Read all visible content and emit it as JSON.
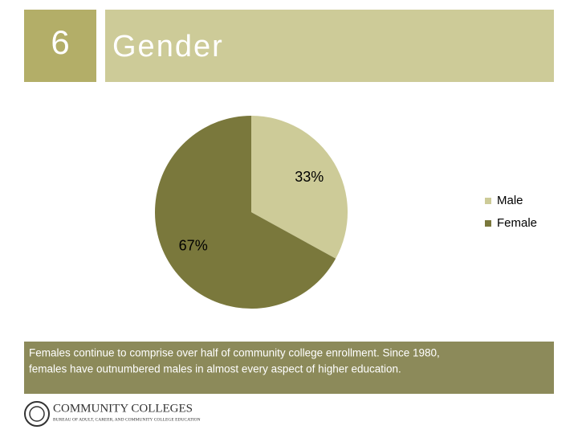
{
  "slide": {
    "number": "6",
    "title": "Gender",
    "caption": [
      "Females continue to comprise over half of community college enrollment. Since 1980,",
      "females have outnumbered males in almost every aspect of higher education."
    ],
    "logo": {
      "name": "COMMUNITY COLLEGES",
      "subtitle": "BUREAU OF ADULT, CAREER, AND COMMUNITY COLLEGE EDUCATION"
    }
  },
  "chart_data": {
    "type": "pie",
    "categories": [
      "Male",
      "Female"
    ],
    "values": [
      33,
      67
    ],
    "value_labels": [
      "33%",
      "67%"
    ],
    "colors": [
      "#cdcb98",
      "#7a783c"
    ],
    "legend": "right"
  }
}
